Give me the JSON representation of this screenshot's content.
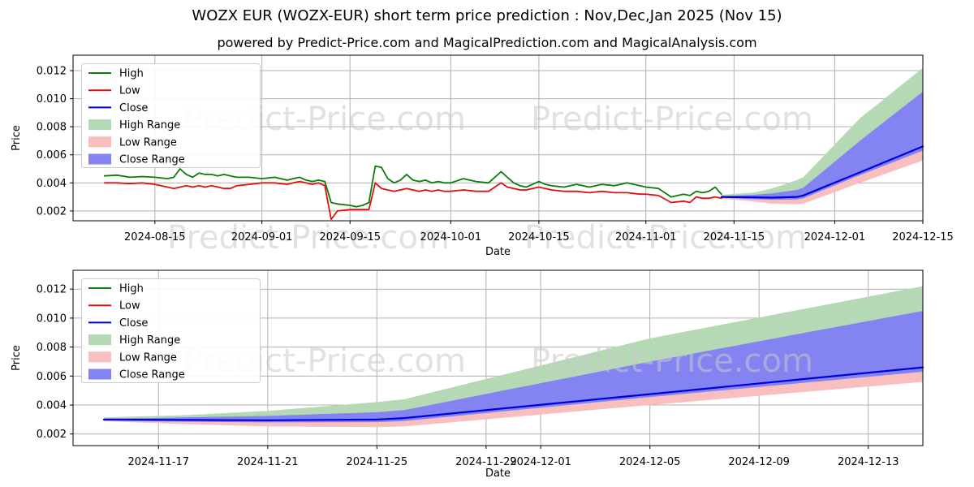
{
  "title": "WOZX EUR (WOZX-EUR) short term price prediction : Nov,Dec,Jan 2025 (Nov 15)",
  "subtitle": "powered by Predict-Price.com and MagicalPrediction.com and MagicalAnalysis.com",
  "watermark_text": "Predict-Price.com",
  "colors": {
    "high_line": "#0a7d0a",
    "low_line": "#dd1111",
    "close_line": "#0000dd",
    "high_range_fill": "#b5d9b5",
    "low_range_fill": "#f9bebe",
    "close_range_fill": "#8383f2",
    "grid": "#b0b0b0",
    "spine": "#000000",
    "watermark": "#c8c8c8"
  },
  "chart_data": [
    {
      "type": "line",
      "xlabel": "Date",
      "ylabel": "Price",
      "xlim": [
        0,
        135
      ],
      "ylim": [
        0.0013,
        0.0131
      ],
      "grid": true,
      "legend_position": "upper left",
      "legend": [
        {
          "label": "High",
          "swatch": "line",
          "color": "#0a7d0a"
        },
        {
          "label": "Low",
          "swatch": "line",
          "color": "#dd1111"
        },
        {
          "label": "Close",
          "swatch": "line",
          "color": "#0000dd"
        },
        {
          "label": "High Range",
          "swatch": "patch",
          "color": "#b5d9b5"
        },
        {
          "label": "Low Range",
          "swatch": "patch",
          "color": "#f9bebe"
        },
        {
          "label": "Close Range",
          "swatch": "patch",
          "color": "#8383f2"
        }
      ],
      "xticks": [
        {
          "d": 13,
          "label": "2024-08-15"
        },
        {
          "d": 30,
          "label": "2024-09-01"
        },
        {
          "d": 44,
          "label": "2024-09-15"
        },
        {
          "d": 60,
          "label": "2024-10-01"
        },
        {
          "d": 74,
          "label": "2024-10-15"
        },
        {
          "d": 91,
          "label": "2024-11-01"
        },
        {
          "d": 105,
          "label": "2024-11-15"
        },
        {
          "d": 121,
          "label": "2024-12-01"
        },
        {
          "d": 135,
          "label": "2024-12-15"
        }
      ],
      "yticks": [
        {
          "v": 0.002,
          "label": "0.002"
        },
        {
          "v": 0.004,
          "label": "0.004"
        },
        {
          "v": 0.006,
          "label": "0.006"
        },
        {
          "v": 0.008,
          "label": "0.008"
        },
        {
          "v": 0.01,
          "label": "0.010"
        },
        {
          "v": 0.012,
          "label": "0.012"
        }
      ],
      "bands": [
        {
          "name": "high-range-band",
          "color": "#b5d9b5",
          "x": [
            103,
            108,
            111,
            115,
            116,
            125,
            135
          ],
          "upper": [
            0.00315,
            0.0033,
            0.0036,
            0.0042,
            0.0044,
            0.0086,
            0.0122
          ],
          "lower": [
            0.003,
            0.00297,
            0.00295,
            0.003,
            0.0031,
            0.00475,
            0.0066
          ]
        },
        {
          "name": "low-range-band",
          "color": "#f9bebe",
          "x": [
            103,
            108,
            111,
            115,
            116,
            125,
            135
          ],
          "upper": [
            0.003,
            0.00297,
            0.00295,
            0.003,
            0.0031,
            0.00475,
            0.0066
          ],
          "lower": [
            0.00288,
            0.00268,
            0.00252,
            0.00248,
            0.00252,
            0.004,
            0.0056
          ]
        },
        {
          "name": "close-range-band",
          "color": "#8383f2",
          "x": [
            103,
            108,
            111,
            115,
            116,
            125,
            135
          ],
          "upper": [
            0.00305,
            0.00315,
            0.00325,
            0.0035,
            0.00365,
            0.007,
            0.0105
          ],
          "lower": [
            0.00292,
            0.00285,
            0.0028,
            0.00282,
            0.0029,
            0.00455,
            0.0063
          ]
        }
      ],
      "lines": [
        {
          "name": "high-line",
          "color": "#0a7d0a",
          "width": 1.8,
          "x": [
            5,
            7,
            9,
            11,
            13,
            15,
            16,
            17,
            18,
            19,
            20,
            21,
            22,
            23,
            24,
            25,
            26,
            28,
            30,
            32,
            33,
            34,
            35,
            36,
            37,
            38,
            39,
            40,
            41,
            42,
            44,
            45,
            46,
            47,
            48,
            49,
            50,
            51,
            52,
            53,
            54,
            55,
            56,
            57,
            58,
            59,
            60,
            62,
            64,
            66,
            68,
            69,
            70,
            71,
            72,
            73,
            74,
            75,
            76,
            78,
            80,
            82,
            84,
            86,
            88,
            90,
            91,
            93,
            95,
            97,
            98,
            99,
            100,
            101,
            102,
            103
          ],
          "y": [
            0.0045,
            0.00455,
            0.0044,
            0.00445,
            0.0044,
            0.0043,
            0.0044,
            0.005,
            0.0046,
            0.0044,
            0.0047,
            0.0046,
            0.0046,
            0.0045,
            0.0046,
            0.0045,
            0.0044,
            0.0044,
            0.0043,
            0.0044,
            0.0043,
            0.0042,
            0.0043,
            0.0044,
            0.0042,
            0.0041,
            0.0042,
            0.0041,
            0.0026,
            0.0025,
            0.0024,
            0.0023,
            0.0024,
            0.0026,
            0.0052,
            0.0051,
            0.0043,
            0.004,
            0.0042,
            0.0046,
            0.0042,
            0.0041,
            0.0042,
            0.004,
            0.0041,
            0.004,
            0.004,
            0.0043,
            0.0041,
            0.004,
            0.0048,
            0.0044,
            0.004,
            0.0038,
            0.0037,
            0.0039,
            0.0041,
            0.0039,
            0.0038,
            0.0037,
            0.0039,
            0.0037,
            0.0039,
            0.0038,
            0.004,
            0.0038,
            0.0037,
            0.0036,
            0.003,
            0.0032,
            0.0031,
            0.0034,
            0.0033,
            0.0034,
            0.0037,
            0.0032
          ]
        },
        {
          "name": "low-line",
          "color": "#dd1111",
          "width": 1.8,
          "x": [
            5,
            7,
            9,
            11,
            13,
            15,
            16,
            17,
            18,
            19,
            20,
            21,
            22,
            23,
            24,
            25,
            26,
            28,
            30,
            32,
            33,
            34,
            35,
            36,
            37,
            38,
            39,
            40,
            41,
            42,
            44,
            45,
            46,
            47,
            48,
            49,
            50,
            51,
            52,
            53,
            54,
            55,
            56,
            57,
            58,
            59,
            60,
            62,
            64,
            66,
            68,
            69,
            70,
            71,
            72,
            73,
            74,
            75,
            76,
            78,
            80,
            82,
            84,
            86,
            88,
            90,
            91,
            93,
            95,
            97,
            98,
            99,
            100,
            101,
            102,
            103
          ],
          "y": [
            0.004,
            0.004,
            0.00395,
            0.004,
            0.0039,
            0.0037,
            0.0036,
            0.0037,
            0.0038,
            0.0037,
            0.0038,
            0.0037,
            0.0038,
            0.0037,
            0.0036,
            0.0036,
            0.0038,
            0.0039,
            0.004,
            0.004,
            0.00395,
            0.0039,
            0.004,
            0.0041,
            0.004,
            0.0039,
            0.004,
            0.0038,
            0.0014,
            0.002,
            0.0021,
            0.0021,
            0.0021,
            0.0021,
            0.004,
            0.0036,
            0.0035,
            0.0034,
            0.0035,
            0.0036,
            0.0035,
            0.0034,
            0.0035,
            0.0034,
            0.0035,
            0.0034,
            0.0034,
            0.0035,
            0.0034,
            0.0034,
            0.004,
            0.0037,
            0.0036,
            0.0035,
            0.0035,
            0.0036,
            0.0037,
            0.0036,
            0.0035,
            0.0034,
            0.0034,
            0.0033,
            0.0034,
            0.0033,
            0.0033,
            0.0032,
            0.0032,
            0.0031,
            0.0026,
            0.0027,
            0.0026,
            0.003,
            0.0029,
            0.0029,
            0.003,
            0.0029
          ]
        },
        {
          "name": "close-line",
          "color": "#0000dd",
          "width": 2.2,
          "x": [
            103,
            108,
            111,
            115,
            116,
            125,
            135
          ],
          "y": [
            0.003,
            0.00297,
            0.00295,
            0.003,
            0.0031,
            0.00475,
            0.0066
          ]
        }
      ]
    },
    {
      "type": "line",
      "xlabel": "Date",
      "ylabel": "Price",
      "xlim": [
        -1.13,
        30
      ],
      "ylim": [
        0.0012,
        0.0133
      ],
      "grid": true,
      "legend_position": "upper left",
      "legend": [
        {
          "label": "High",
          "swatch": "line",
          "color": "#0a7d0a"
        },
        {
          "label": "Low",
          "swatch": "line",
          "color": "#dd1111"
        },
        {
          "label": "Close",
          "swatch": "line",
          "color": "#0000dd"
        },
        {
          "label": "High Range",
          "swatch": "patch",
          "color": "#b5d9b5"
        },
        {
          "label": "Low Range",
          "swatch": "patch",
          "color": "#f9bebe"
        },
        {
          "label": "Close Range",
          "swatch": "patch",
          "color": "#8383f2"
        }
      ],
      "xticks": [
        {
          "d": 2,
          "label": "2024-11-17"
        },
        {
          "d": 6,
          "label": "2024-11-21"
        },
        {
          "d": 10,
          "label": "2024-11-25"
        },
        {
          "d": 14,
          "label": "2024-11-29"
        },
        {
          "d": 16,
          "label": "2024-12-01"
        },
        {
          "d": 20,
          "label": "2024-12-05"
        },
        {
          "d": 24,
          "label": "2024-12-09"
        },
        {
          "d": 28,
          "label": "2024-12-13"
        }
      ],
      "yticks": [
        {
          "v": 0.002,
          "label": "0.002"
        },
        {
          "v": 0.004,
          "label": "0.004"
        },
        {
          "v": 0.006,
          "label": "0.006"
        },
        {
          "v": 0.008,
          "label": "0.008"
        },
        {
          "v": 0.01,
          "label": "0.010"
        },
        {
          "v": 0.012,
          "label": "0.012"
        }
      ],
      "bands": [
        {
          "name": "high-range-band",
          "color": "#b5d9b5",
          "x": [
            0,
            3,
            6,
            10,
            11,
            20,
            30
          ],
          "upper": [
            0.00315,
            0.0033,
            0.0036,
            0.0042,
            0.0044,
            0.0086,
            0.0122
          ],
          "lower": [
            0.003,
            0.00297,
            0.00295,
            0.003,
            0.0031,
            0.00475,
            0.0066
          ]
        },
        {
          "name": "low-range-band",
          "color": "#f9bebe",
          "x": [
            0,
            3,
            6,
            10,
            11,
            20,
            30
          ],
          "upper": [
            0.003,
            0.00297,
            0.00295,
            0.003,
            0.0031,
            0.00475,
            0.0066
          ],
          "lower": [
            0.00288,
            0.00268,
            0.00252,
            0.00248,
            0.00252,
            0.004,
            0.0056
          ]
        },
        {
          "name": "close-range-band",
          "color": "#8383f2",
          "x": [
            0,
            3,
            6,
            10,
            11,
            20,
            30
          ],
          "upper": [
            0.00305,
            0.00315,
            0.00325,
            0.0035,
            0.00365,
            0.007,
            0.0105
          ],
          "lower": [
            0.00292,
            0.00285,
            0.0028,
            0.00282,
            0.0029,
            0.00455,
            0.0063
          ]
        }
      ],
      "lines": [
        {
          "name": "close-line",
          "color": "#0000dd",
          "width": 2.2,
          "x": [
            0,
            3,
            6,
            10,
            11,
            20,
            30
          ],
          "y": [
            0.003,
            0.00297,
            0.00295,
            0.003,
            0.0031,
            0.00475,
            0.0066
          ]
        }
      ]
    }
  ]
}
